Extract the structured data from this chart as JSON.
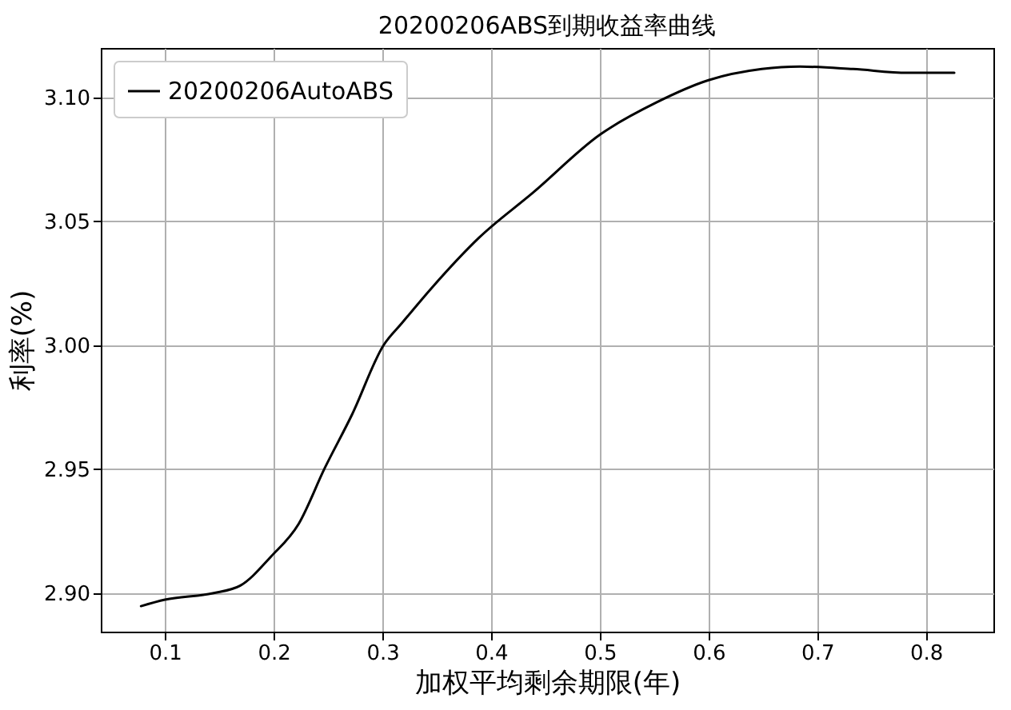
{
  "chart_data": {
    "type": "line",
    "title": "20200206ABS到期收益率曲线",
    "xlabel": "加权平均剩余期限(年)",
    "ylabel": "利率(%)",
    "xlim": [
      0.041,
      0.862
    ],
    "ylim": [
      2.8845,
      3.12
    ],
    "xticks": [
      0.1,
      0.2,
      0.3,
      0.4,
      0.5,
      0.6,
      0.7,
      0.8
    ],
    "yticks": [
      {
        "value": 2.9,
        "label": "2.90"
      },
      {
        "value": 2.95,
        "label": "2.95"
      },
      {
        "value": 3.0,
        "label": "3.00"
      },
      {
        "value": 3.05,
        "label": "3.05"
      },
      {
        "value": 3.1,
        "label": "3.10"
      }
    ],
    "grid": true,
    "legend": "top left",
    "marker": "none",
    "line_style": "solid",
    "series": [
      {
        "name": "20200206AutoABS",
        "color": "#000000",
        "x": [
          0.078,
          0.1,
          0.144,
          0.169,
          0.198,
          0.223,
          0.247,
          0.272,
          0.301,
          0.318,
          0.345,
          0.389,
          0.439,
          0.5,
          0.552,
          0.6,
          0.649,
          0.684,
          0.733,
          0.783,
          0.826
        ],
        "values": [
          2.8948,
          2.8974,
          2.9,
          2.903,
          2.915,
          2.928,
          2.9505,
          2.972,
          3.0,
          3.009,
          3.023,
          3.0435,
          3.0618,
          3.085,
          3.098,
          3.107,
          3.1115,
          3.1125,
          3.1115,
          3.11,
          3.11
        ]
      }
    ]
  }
}
